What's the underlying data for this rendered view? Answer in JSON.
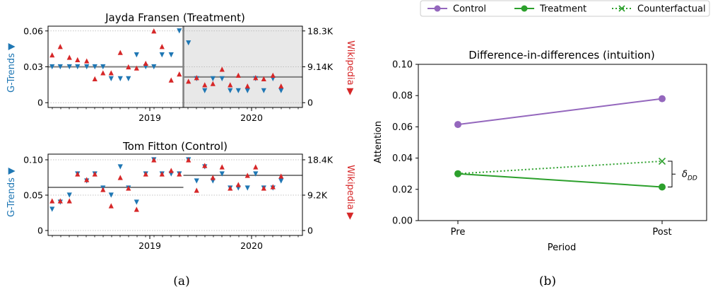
{
  "colors": {
    "gtrends": "#1f77b4",
    "wikipedia": "#d62728",
    "control": "#9467bd",
    "treatment": "#2ca02c",
    "line": "#808080",
    "shade": "#e8e8e8"
  },
  "captions": {
    "a": "(a)",
    "b": "(b)"
  },
  "chart_data": [
    {
      "type": "scatter",
      "title": "Jayda Fransen (Treatment)",
      "ylabel_left": "G-Trends ▼",
      "ylabel_right": "Wikipedia ▶",
      "ylim": [
        -0.004,
        0.064
      ],
      "yticks": [
        0,
        0.03,
        0.06
      ],
      "ytick_labels": [
        "0",
        "0.03",
        "0.06"
      ],
      "y2ticks": [
        0,
        0.03,
        0.06
      ],
      "y2tick_labels": [
        "0",
        "9.14K",
        "18.3K"
      ],
      "xlim": [
        2018.0,
        2020.5
      ],
      "xticks": [
        2019.0,
        2020.0
      ],
      "xtick_labels": [
        "2019",
        "2020"
      ],
      "shaded_from": 2019.33,
      "divider_x": 2019.33,
      "means": [
        {
          "from": 2018.0,
          "to": 2019.33,
          "y": 0.03
        },
        {
          "from": 2019.33,
          "to": 2020.5,
          "y": 0.0215
        }
      ],
      "series": [
        {
          "name": "G-Trends",
          "marker": "triangle-down",
          "x": [
            2018.04,
            2018.12,
            2018.21,
            2018.29,
            2018.38,
            2018.46,
            2018.54,
            2018.62,
            2018.71,
            2018.79,
            2018.87,
            2018.96,
            2019.04,
            2019.12,
            2019.21,
            2019.29,
            2019.38,
            2019.46,
            2019.54,
            2019.62,
            2019.71,
            2019.79,
            2019.87,
            2019.96,
            2020.04,
            2020.12,
            2020.21,
            2020.29
          ],
          "y": [
            0.03,
            0.03,
            0.03,
            0.03,
            0.03,
            0.03,
            0.03,
            0.02,
            0.02,
            0.02,
            0.04,
            0.03,
            0.03,
            0.04,
            0.04,
            0.06,
            0.05,
            0.02,
            0.01,
            0.02,
            0.02,
            0.01,
            0.01,
            0.01,
            0.02,
            0.01,
            0.02,
            0.01
          ]
        },
        {
          "name": "Wikipedia",
          "marker": "triangle-up",
          "x": [
            2018.04,
            2018.12,
            2018.21,
            2018.29,
            2018.38,
            2018.46,
            2018.54,
            2018.62,
            2018.71,
            2018.79,
            2018.87,
            2018.96,
            2019.04,
            2019.12,
            2019.21,
            2019.29,
            2019.38,
            2019.46,
            2019.54,
            2019.62,
            2019.71,
            2019.79,
            2019.87,
            2019.96,
            2020.04,
            2020.12,
            2020.21,
            2020.29
          ],
          "y": [
            0.04,
            0.047,
            0.038,
            0.036,
            0.035,
            0.02,
            0.025,
            0.025,
            0.042,
            0.03,
            0.029,
            0.033,
            0.06,
            0.047,
            0.019,
            0.024,
            0.018,
            0.021,
            0.015,
            0.016,
            0.028,
            0.015,
            0.023,
            0.014,
            0.021,
            0.02,
            0.023,
            0.014
          ]
        }
      ]
    },
    {
      "type": "scatter",
      "title": "Tom Fitton (Control)",
      "ylabel_left": "G-Trends ▼",
      "ylabel_right": "Wikipedia ▶",
      "ylim": [
        -0.007,
        0.108
      ],
      "yticks": [
        0,
        0.05,
        0.1
      ],
      "ytick_labels": [
        "0",
        "0.05",
        "0.10"
      ],
      "y2ticks": [
        0,
        0.05,
        0.1
      ],
      "y2tick_labels": [
        "0",
        "9.2K",
        "18.4K"
      ],
      "xlim": [
        2018.0,
        2020.5
      ],
      "xticks": [
        2019.0,
        2020.0
      ],
      "xtick_labels": [
        "2019",
        "2020"
      ],
      "means": [
        {
          "from": 2018.0,
          "to": 2019.33,
          "y": 0.061
        },
        {
          "from": 2019.33,
          "to": 2020.5,
          "y": 0.078
        }
      ],
      "series": [
        {
          "name": "G-Trends",
          "marker": "triangle-down",
          "x": [
            2018.04,
            2018.12,
            2018.21,
            2018.29,
            2018.38,
            2018.46,
            2018.54,
            2018.62,
            2018.71,
            2018.79,
            2018.87,
            2018.96,
            2019.04,
            2019.12,
            2019.21,
            2019.29,
            2019.38,
            2019.46,
            2019.54,
            2019.62,
            2019.71,
            2019.79,
            2019.87,
            2019.96,
            2020.04,
            2020.12,
            2020.21,
            2020.29
          ],
          "y": [
            0.03,
            0.04,
            0.05,
            0.08,
            0.07,
            0.08,
            0.06,
            0.05,
            0.09,
            0.06,
            0.04,
            0.08,
            0.1,
            0.08,
            0.08,
            0.08,
            0.1,
            0.07,
            0.09,
            0.07,
            0.08,
            0.06,
            0.06,
            0.06,
            0.08,
            0.06,
            0.06,
            0.07
          ]
        },
        {
          "name": "Wikipedia",
          "marker": "triangle-up",
          "x": [
            2018.04,
            2018.12,
            2018.21,
            2018.29,
            2018.38,
            2018.46,
            2018.54,
            2018.62,
            2018.71,
            2018.79,
            2018.87,
            2018.96,
            2019.04,
            2019.12,
            2019.21,
            2019.29,
            2019.38,
            2019.46,
            2019.54,
            2019.62,
            2019.71,
            2019.79,
            2019.87,
            2019.96,
            2020.04,
            2020.12,
            2020.21,
            2020.29
          ],
          "y": [
            0.042,
            0.042,
            0.042,
            0.08,
            0.072,
            0.08,
            0.058,
            0.035,
            0.075,
            0.06,
            0.03,
            0.08,
            0.1,
            0.08,
            0.085,
            0.08,
            0.1,
            0.057,
            0.092,
            0.075,
            0.09,
            0.06,
            0.065,
            0.078,
            0.09,
            0.06,
            0.062,
            0.077
          ]
        }
      ]
    },
    {
      "type": "line",
      "title": "Difference-in-differences (intuition)",
      "xlabel": "Period",
      "ylabel": "Attention",
      "categories": [
        "Pre",
        "Post"
      ],
      "ylim": [
        0.0,
        0.1
      ],
      "yticks": [
        0.0,
        0.02,
        0.04,
        0.06,
        0.08,
        0.1
      ],
      "ytick_labels": [
        "0.00",
        "0.02",
        "0.04",
        "0.06",
        "0.08",
        "0.10"
      ],
      "legend": "top",
      "annotation": "δDD",
      "series": [
        {
          "name": "Control",
          "values": [
            0.0615,
            0.078
          ],
          "color": "#9467bd",
          "style": "solid",
          "marker": "circle"
        },
        {
          "name": "Treatment",
          "values": [
            0.03,
            0.0215
          ],
          "color": "#2ca02c",
          "style": "solid",
          "marker": "circle"
        },
        {
          "name": "Counterfactual",
          "values": [
            0.03,
            0.038
          ],
          "color": "#2ca02c",
          "style": "dotted",
          "marker": "x"
        }
      ]
    }
  ]
}
